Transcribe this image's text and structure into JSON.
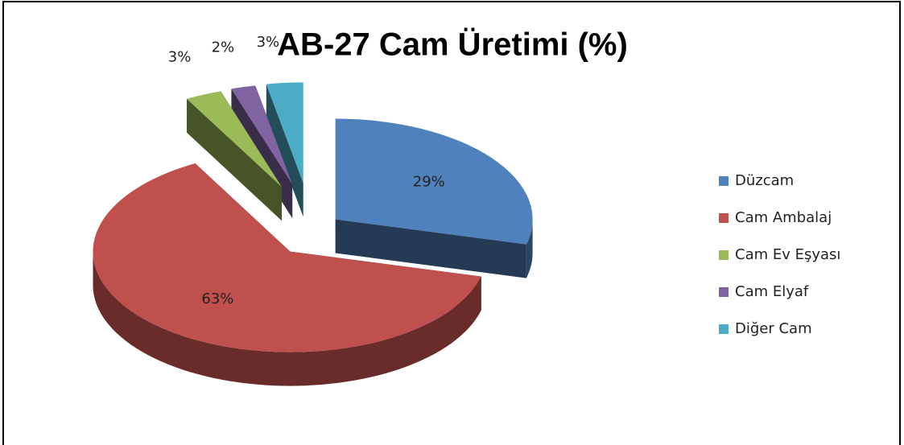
{
  "chart_data": {
    "type": "pie",
    "title": "AB-27 Cam Üretimi (%)",
    "categories": [
      "Düzcam",
      "Cam Ambalaj",
      "Cam Ev Eşyası",
      "Cam Elyaf",
      "Diğer Cam"
    ],
    "values": [
      29,
      63,
      3,
      2,
      3
    ],
    "value_labels": [
      "29%",
      "63%",
      "3%",
      "2%",
      "3%"
    ],
    "colors": [
      "#4f81bd",
      "#c0504d",
      "#9bbb59",
      "#8064a2",
      "#4bacc6"
    ],
    "legend": "right"
  }
}
